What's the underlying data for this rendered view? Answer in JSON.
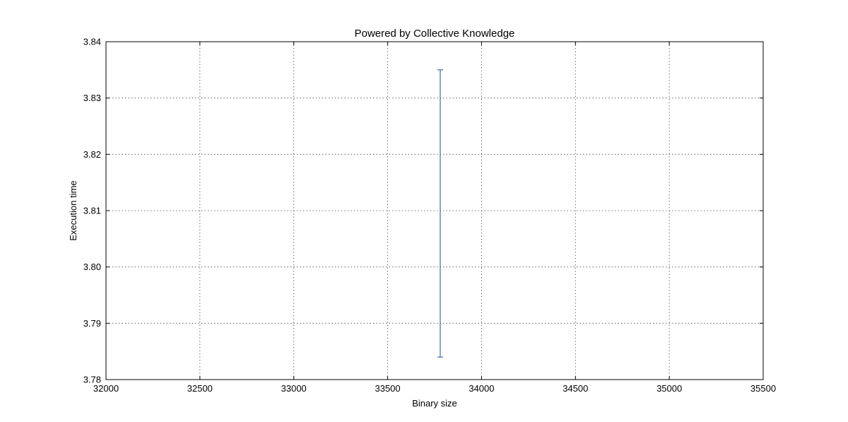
{
  "chart_data": {
    "type": "scatter",
    "title": "Powered by Collective Knowledge",
    "xlabel": "Binary size",
    "ylabel": "Execution time",
    "xlim": [
      32000,
      35500
    ],
    "ylim": [
      3.78,
      3.84
    ],
    "x_ticks": [
      "32000",
      "32500",
      "33000",
      "33500",
      "34000",
      "34500",
      "35000",
      "35500"
    ],
    "y_ticks": [
      "3.78",
      "3.79",
      "3.80",
      "3.81",
      "3.82",
      "3.83",
      "3.84"
    ],
    "grid": true,
    "series": [
      {
        "color": "#4c72b0",
        "points": [
          {
            "x": 33780,
            "y_low": 3.784,
            "y_high": 3.835
          }
        ]
      }
    ]
  }
}
